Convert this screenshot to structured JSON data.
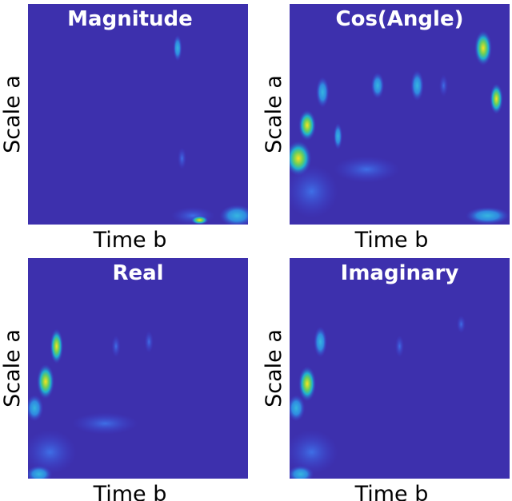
{
  "panels": [
    {
      "title": "Magnitude",
      "xlabel": "Time b",
      "ylabel": "Scale a"
    },
    {
      "title": "Cos(Angle)",
      "xlabel": "Time b",
      "ylabel": "Scale a"
    },
    {
      "title": "Real",
      "xlabel": "Time b",
      "ylabel": "Scale a"
    },
    {
      "title": "Imaginary",
      "xlabel": "Time b",
      "ylabel": "Scale a"
    }
  ]
}
